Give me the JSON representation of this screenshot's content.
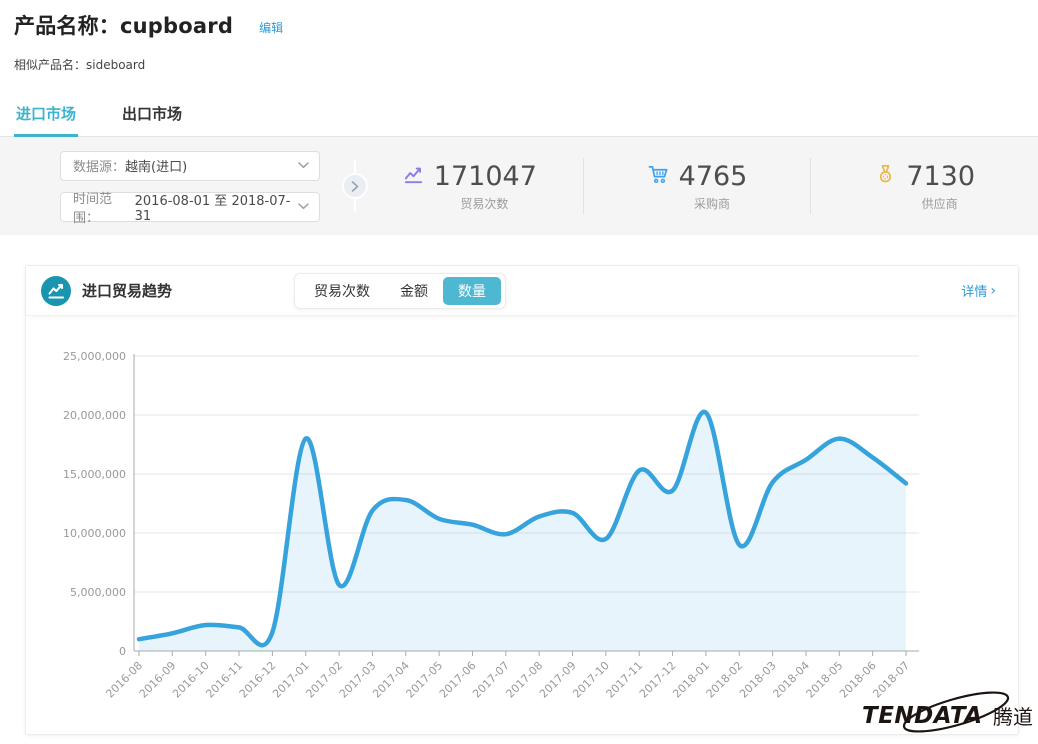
{
  "header": {
    "title_label": "产品名称：",
    "product_name": "cupboard",
    "edit_label": "编辑",
    "similar_label": "相似产品名：",
    "similar_value": "sideboard"
  },
  "tabs": [
    {
      "label": "进口市场",
      "active": true
    },
    {
      "label": "出口市场",
      "active": false
    }
  ],
  "filters": {
    "datasource": {
      "label": "数据源：",
      "value": "越南(进口)"
    },
    "daterange": {
      "label": "时间范围：",
      "value": "2016-08-01 至 2018-07-31"
    }
  },
  "stats": [
    {
      "icon": "trend-icon",
      "value": "171047",
      "label": "贸易次数",
      "color": "#8f7bdf"
    },
    {
      "icon": "cart-icon",
      "value": "4765",
      "label": "采购商",
      "color": "#3ea1f0"
    },
    {
      "icon": "medal-icon",
      "value": "7130",
      "label": "供应商",
      "color": "#ecb64f"
    }
  ],
  "chart_card": {
    "title": "进口贸易趋势",
    "toggles": [
      {
        "label": "贸易次数",
        "active": false
      },
      {
        "label": "金额",
        "active": false
      },
      {
        "label": "数量",
        "active": true
      }
    ],
    "detail_link": "详情",
    "detail_arrow": "›"
  },
  "chart_data": {
    "type": "area",
    "title": "进口贸易趋势 - 数量",
    "x": [
      "2016-08",
      "2016-09",
      "2016-10",
      "2016-11",
      "2016-12",
      "2017-01",
      "2017-02",
      "2017-03",
      "2017-04",
      "2017-05",
      "2017-06",
      "2017-07",
      "2017-08",
      "2017-09",
      "2017-10",
      "2017-11",
      "2017-12",
      "2018-01",
      "2018-02",
      "2018-03",
      "2018-04",
      "2018-05",
      "2018-06",
      "2018-07"
    ],
    "series": [
      {
        "name": "数量",
        "values": [
          1000000,
          1500000,
          2200000,
          2000000,
          1600000,
          18000000,
          5600000,
          11900000,
          12800000,
          11200000,
          10700000,
          9900000,
          11400000,
          11700000,
          9500000,
          15300000,
          13600000,
          20200000,
          9000000,
          14300000,
          16200000,
          18000000,
          16400000,
          14200000
        ]
      }
    ],
    "xlabel": "",
    "ylabel": "",
    "ylim": [
      0,
      25000000
    ],
    "y_ticks": [
      0,
      5000000,
      10000000,
      15000000,
      20000000,
      25000000
    ],
    "grid": true,
    "legend": "none",
    "line_color": "#36a3dc",
    "fill_color": "rgba(54,163,220,0.12)"
  },
  "colors": {
    "accent_teal": "#3db3ce",
    "active_toggle": "#4eb7d2",
    "link_blue": "#2f9bd6",
    "card_icon_bg": "#1a95b0"
  },
  "logo": {
    "text": "TENDATA",
    "suffix": "腾道"
  }
}
